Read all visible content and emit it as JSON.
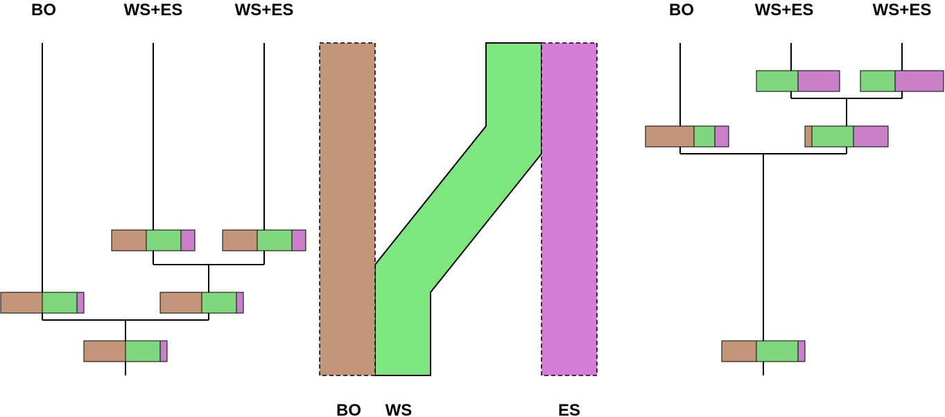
{
  "colors": {
    "BO": "#c29579",
    "WS": "#7ee67e",
    "ES": "#d57dd6",
    "ES_box": "#c87fc8",
    "WS_box": "#7fd67f"
  },
  "left_tree": {
    "tip_labels": [
      "BO",
      "WS+ES",
      "WS+ES"
    ],
    "boxes": [
      {
        "name": "tip2-ancestor-box",
        "fractions": {
          "BO": 0.417,
          "WS": 0.417,
          "ES": 0.166
        }
      },
      {
        "name": "tip3-ancestor-box",
        "fractions": {
          "BO": 0.417,
          "WS": 0.417,
          "ES": 0.166
        }
      },
      {
        "name": "bo-branch-box",
        "fractions": {
          "BO": 0.5,
          "WS": 0.417,
          "ES": 0.083
        }
      },
      {
        "name": "ws-es-clade-box",
        "fractions": {
          "BO": 0.5,
          "WS": 0.417,
          "ES": 0.083
        }
      },
      {
        "name": "root-box",
        "fractions": {
          "BO": 0.5,
          "WS": 0.417,
          "ES": 0.083
        }
      }
    ]
  },
  "middle_diagram": {
    "bottom_labels": [
      "BO",
      "WS",
      "ES"
    ]
  },
  "right_tree": {
    "tip_labels": [
      "BO",
      "WS+ES",
      "WS+ES"
    ],
    "boxes": [
      {
        "name": "tip2-ancestor-box",
        "fractions": {
          "BO": 0,
          "WS": 0.5,
          "ES": 0.5
        }
      },
      {
        "name": "tip3-ancestor-box",
        "fractions": {
          "BO": 0,
          "WS": 0.417,
          "ES": 0.583
        }
      },
      {
        "name": "bo-branch-box",
        "fractions": {
          "BO": 0.583,
          "WS": 0.25,
          "ES": 0.167
        }
      },
      {
        "name": "ws-es-clade-box",
        "fractions": {
          "BO": 0.083,
          "WS": 0.5,
          "ES": 0.417
        }
      },
      {
        "name": "root-box",
        "fractions": {
          "BO": 0.417,
          "WS": 0.5,
          "ES": 0.083
        }
      }
    ]
  }
}
